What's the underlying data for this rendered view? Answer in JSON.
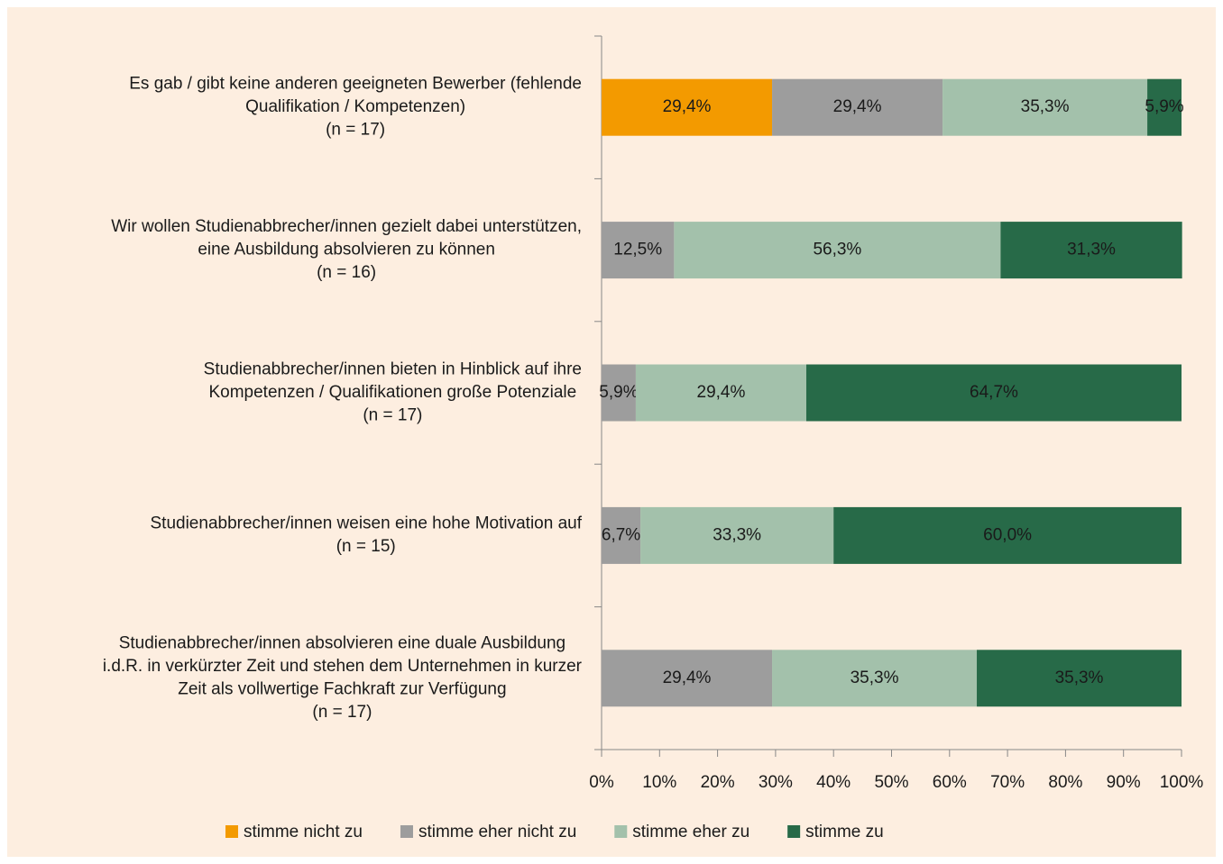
{
  "chart_data": {
    "type": "stacked-bar-horizontal",
    "categories": [
      [
        "Es gab / gibt keine anderen geeigneten Bewerber (fehlende",
        "Qualifikation / Kompetenzen)",
        "(n = 17)"
      ],
      [
        "Wir wollen Studienabbrecher/innen gezielt dabei unterstützen,",
        "eine Ausbildung absolvieren zu können",
        "(n = 16)"
      ],
      [
        "Studienabbrecher/innen bieten in Hinblick auf ihre",
        "Kompetenzen / Qualifikationen große Potenziale",
        "(n = 17)"
      ],
      [
        "Studienabbrecher/innen weisen eine hohe Motivation auf",
        "(n = 15)"
      ],
      [
        "Studienabbrecher/innen absolvieren eine duale Ausbildung",
        "i.d.R. in verkürzter Zeit und stehen dem Unternehmen in kurzer",
        "Zeit als vollwertige Fachkraft zur Verfügung",
        "(n = 17)"
      ]
    ],
    "series": [
      {
        "name": "stimme nicht zu",
        "color": "#f39a00",
        "values": [
          29.4,
          0,
          0,
          0,
          0
        ],
        "value_labels": [
          "29,4%",
          null,
          null,
          null,
          null
        ]
      },
      {
        "name": "stimme eher nicht zu",
        "color": "#9d9d9d",
        "values": [
          29.4,
          12.5,
          5.9,
          6.7,
          29.4
        ],
        "value_labels": [
          "29,4%",
          "12,5%",
          "5,9%",
          "6,7%",
          "29,4%"
        ]
      },
      {
        "name": "stimme eher zu",
        "color": "#a3c1ab",
        "values": [
          35.3,
          56.3,
          29.4,
          33.3,
          35.3
        ],
        "value_labels": [
          "35,3%",
          "56,3%",
          "29,4%",
          "33,3%",
          "35,3%"
        ]
      },
      {
        "name": "stimme zu",
        "color": "#276a48",
        "values": [
          5.9,
          31.3,
          64.7,
          60.0,
          35.3
        ],
        "value_labels": [
          "5,9%",
          "31,3%",
          "64,7%",
          "60,0%",
          "35,3%"
        ]
      }
    ],
    "xlim": [
      0,
      100
    ],
    "xticks": [
      {
        "value": 0,
        "label": "0%"
      },
      {
        "value": 10,
        "label": "10%"
      },
      {
        "value": 20,
        "label": "20%"
      },
      {
        "value": 30,
        "label": "30%"
      },
      {
        "value": 40,
        "label": "40%"
      },
      {
        "value": 50,
        "label": "50%"
      },
      {
        "value": 60,
        "label": "60%"
      },
      {
        "value": 70,
        "label": "70%"
      },
      {
        "value": 80,
        "label": "80%"
      },
      {
        "value": 90,
        "label": "90%"
      },
      {
        "value": 100,
        "label": "100%"
      }
    ],
    "legend": "bottom"
  }
}
